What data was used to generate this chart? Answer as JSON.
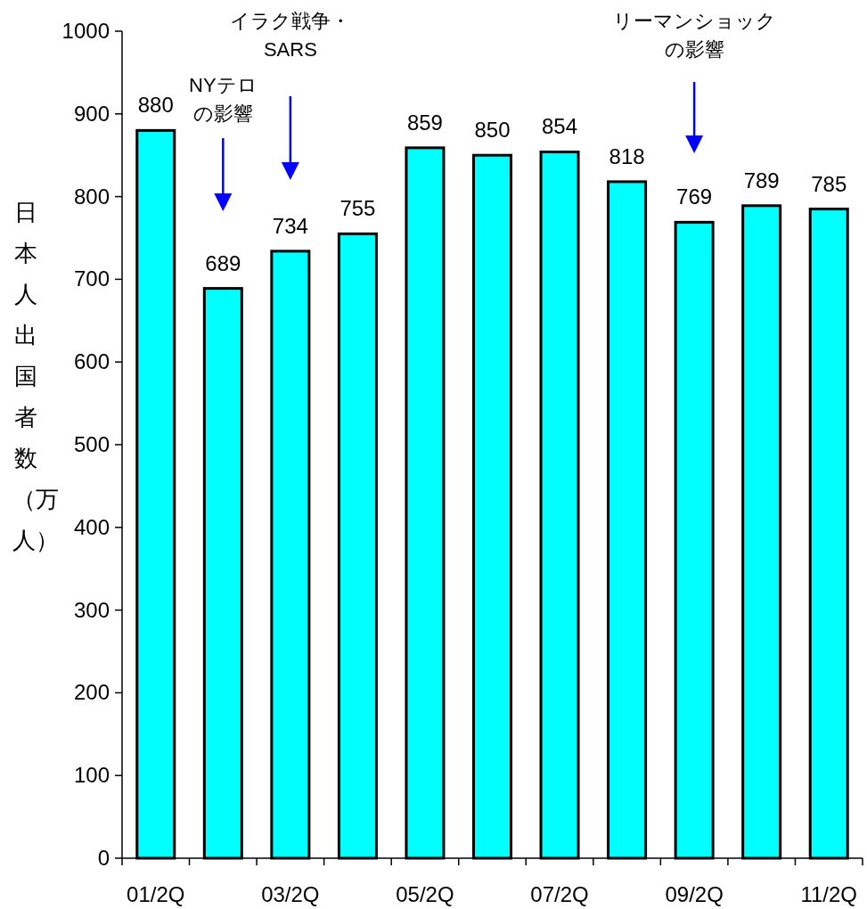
{
  "chart_data": {
    "type": "bar",
    "ylabel": "日本人出国者数（万人）",
    "categories": [
      "01/2Q",
      null,
      "03/2Q",
      null,
      "05/2Q",
      null,
      "07/2Q",
      null,
      "09/2Q",
      null,
      "11/2Q"
    ],
    "values": [
      880,
      689,
      734,
      755,
      859,
      850,
      854,
      818,
      769,
      789,
      785
    ],
    "color": "#00ffff",
    "data_labels": true,
    "grid": false,
    "ylim": [
      0,
      1000
    ],
    "yticks": [
      0,
      100,
      200,
      300,
      400,
      500,
      600,
      700,
      800,
      900,
      1000
    ],
    "annotations": [
      "NYテロの影響",
      "イラク戦争・SARS",
      "リーマンショックの影響"
    ]
  }
}
